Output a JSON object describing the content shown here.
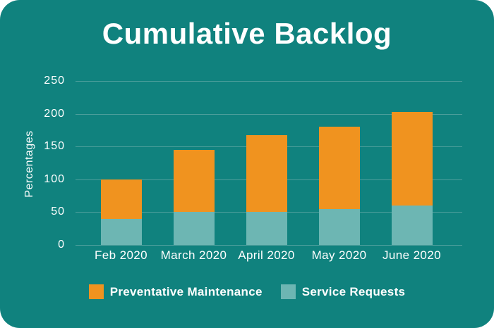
{
  "chart_data": {
    "type": "bar",
    "stacked": true,
    "title": "Cumulative Backlog",
    "ylabel": "Percentages",
    "xlabel": "",
    "categories": [
      "Feb 2020",
      "March 2020",
      "April 2020",
      "May 2020",
      "June 2020"
    ],
    "series": [
      {
        "name": "Service Requests",
        "color": "#6DB6B3",
        "values": [
          40,
          50,
          50,
          55,
          60
        ]
      },
      {
        "name": "Preventative Maintenance",
        "color": "#F0931F",
        "values": [
          60,
          95,
          117,
          125,
          143
        ]
      }
    ],
    "stack_totals": [
      100,
      145,
      167,
      180,
      203
    ],
    "ylim": [
      0,
      250
    ],
    "yticks": [
      0,
      50,
      100,
      150,
      200,
      250
    ],
    "grid": true,
    "legend_position": "bottom",
    "legend_order": [
      "Preventative Maintenance",
      "Service Requests"
    ],
    "colors": {
      "background": "#10827E",
      "gridline": "#4E9F9C",
      "text": "#FFFFFF"
    }
  }
}
